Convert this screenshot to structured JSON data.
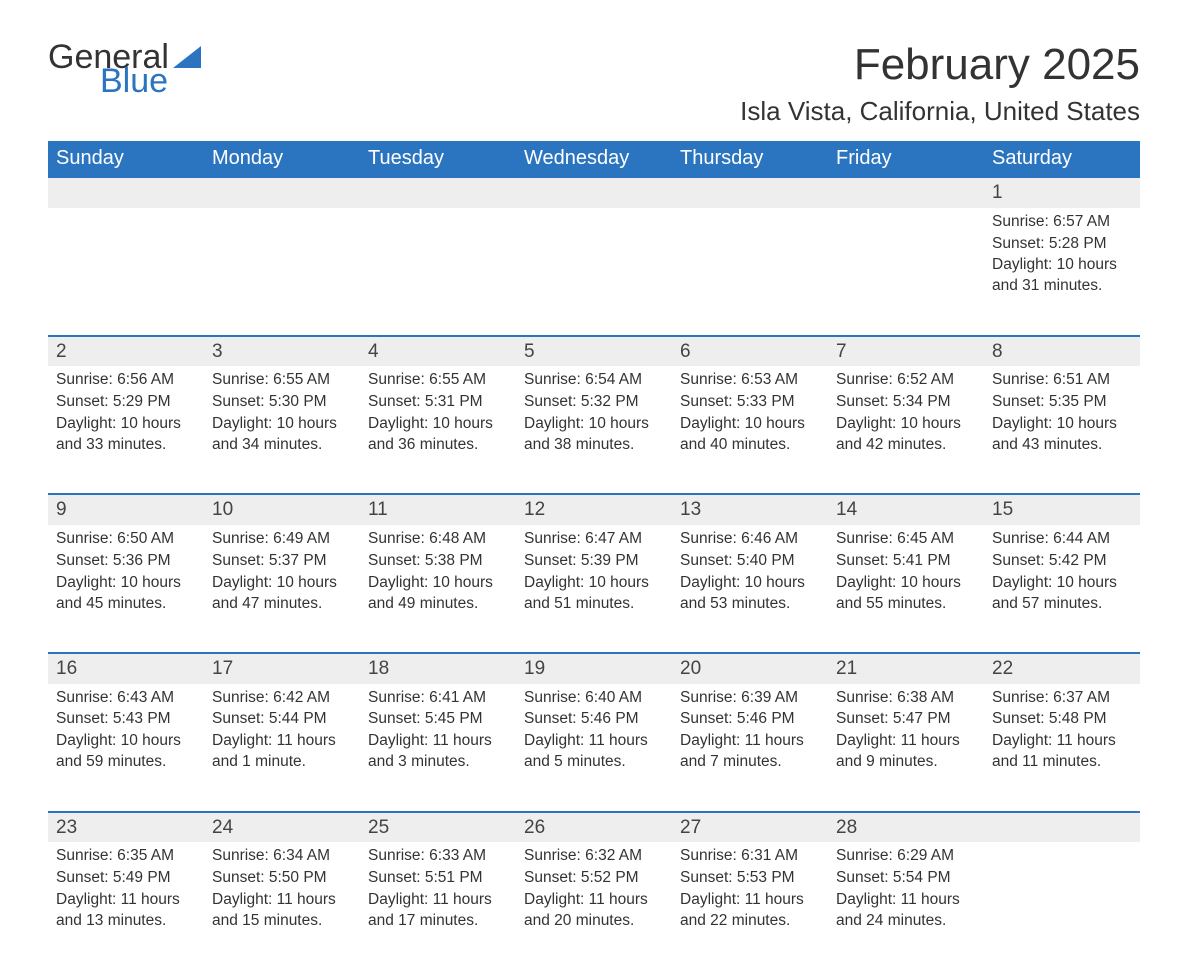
{
  "brand": {
    "part1": "General",
    "part2": "Blue",
    "logo_color": "#2b74c0"
  },
  "title": "February 2025",
  "location": "Isla Vista, California, United States",
  "colors": {
    "header_bg": "#2b74c0",
    "header_text": "#ffffff",
    "daynum_bg": "#eeeeee",
    "row_border": "#2b74c0",
    "body_text": "#333333",
    "page_bg": "#ffffff"
  },
  "typography": {
    "title_fontsize": 44,
    "location_fontsize": 26,
    "dayheader_fontsize": 20,
    "daynum_fontsize": 19,
    "cell_fontsize": 15.5,
    "font_family": "Arial"
  },
  "day_headers": [
    "Sunday",
    "Monday",
    "Tuesday",
    "Wednesday",
    "Thursday",
    "Friday",
    "Saturday"
  ],
  "weeks": [
    [
      null,
      null,
      null,
      null,
      null,
      null,
      {
        "n": "1",
        "sunrise": "Sunrise: 6:57 AM",
        "sunset": "Sunset: 5:28 PM",
        "daylight": "Daylight: 10 hours and 31 minutes."
      }
    ],
    [
      {
        "n": "2",
        "sunrise": "Sunrise: 6:56 AM",
        "sunset": "Sunset: 5:29 PM",
        "daylight": "Daylight: 10 hours and 33 minutes."
      },
      {
        "n": "3",
        "sunrise": "Sunrise: 6:55 AM",
        "sunset": "Sunset: 5:30 PM",
        "daylight": "Daylight: 10 hours and 34 minutes."
      },
      {
        "n": "4",
        "sunrise": "Sunrise: 6:55 AM",
        "sunset": "Sunset: 5:31 PM",
        "daylight": "Daylight: 10 hours and 36 minutes."
      },
      {
        "n": "5",
        "sunrise": "Sunrise: 6:54 AM",
        "sunset": "Sunset: 5:32 PM",
        "daylight": "Daylight: 10 hours and 38 minutes."
      },
      {
        "n": "6",
        "sunrise": "Sunrise: 6:53 AM",
        "sunset": "Sunset: 5:33 PM",
        "daylight": "Daylight: 10 hours and 40 minutes."
      },
      {
        "n": "7",
        "sunrise": "Sunrise: 6:52 AM",
        "sunset": "Sunset: 5:34 PM",
        "daylight": "Daylight: 10 hours and 42 minutes."
      },
      {
        "n": "8",
        "sunrise": "Sunrise: 6:51 AM",
        "sunset": "Sunset: 5:35 PM",
        "daylight": "Daylight: 10 hours and 43 minutes."
      }
    ],
    [
      {
        "n": "9",
        "sunrise": "Sunrise: 6:50 AM",
        "sunset": "Sunset: 5:36 PM",
        "daylight": "Daylight: 10 hours and 45 minutes."
      },
      {
        "n": "10",
        "sunrise": "Sunrise: 6:49 AM",
        "sunset": "Sunset: 5:37 PM",
        "daylight": "Daylight: 10 hours and 47 minutes."
      },
      {
        "n": "11",
        "sunrise": "Sunrise: 6:48 AM",
        "sunset": "Sunset: 5:38 PM",
        "daylight": "Daylight: 10 hours and 49 minutes."
      },
      {
        "n": "12",
        "sunrise": "Sunrise: 6:47 AM",
        "sunset": "Sunset: 5:39 PM",
        "daylight": "Daylight: 10 hours and 51 minutes."
      },
      {
        "n": "13",
        "sunrise": "Sunrise: 6:46 AM",
        "sunset": "Sunset: 5:40 PM",
        "daylight": "Daylight: 10 hours and 53 minutes."
      },
      {
        "n": "14",
        "sunrise": "Sunrise: 6:45 AM",
        "sunset": "Sunset: 5:41 PM",
        "daylight": "Daylight: 10 hours and 55 minutes."
      },
      {
        "n": "15",
        "sunrise": "Sunrise: 6:44 AM",
        "sunset": "Sunset: 5:42 PM",
        "daylight": "Daylight: 10 hours and 57 minutes."
      }
    ],
    [
      {
        "n": "16",
        "sunrise": "Sunrise: 6:43 AM",
        "sunset": "Sunset: 5:43 PM",
        "daylight": "Daylight: 10 hours and 59 minutes."
      },
      {
        "n": "17",
        "sunrise": "Sunrise: 6:42 AM",
        "sunset": "Sunset: 5:44 PM",
        "daylight": "Daylight: 11 hours and 1 minute."
      },
      {
        "n": "18",
        "sunrise": "Sunrise: 6:41 AM",
        "sunset": "Sunset: 5:45 PM",
        "daylight": "Daylight: 11 hours and 3 minutes."
      },
      {
        "n": "19",
        "sunrise": "Sunrise: 6:40 AM",
        "sunset": "Sunset: 5:46 PM",
        "daylight": "Daylight: 11 hours and 5 minutes."
      },
      {
        "n": "20",
        "sunrise": "Sunrise: 6:39 AM",
        "sunset": "Sunset: 5:46 PM",
        "daylight": "Daylight: 11 hours and 7 minutes."
      },
      {
        "n": "21",
        "sunrise": "Sunrise: 6:38 AM",
        "sunset": "Sunset: 5:47 PM",
        "daylight": "Daylight: 11 hours and 9 minutes."
      },
      {
        "n": "22",
        "sunrise": "Sunrise: 6:37 AM",
        "sunset": "Sunset: 5:48 PM",
        "daylight": "Daylight: 11 hours and 11 minutes."
      }
    ],
    [
      {
        "n": "23",
        "sunrise": "Sunrise: 6:35 AM",
        "sunset": "Sunset: 5:49 PM",
        "daylight": "Daylight: 11 hours and 13 minutes."
      },
      {
        "n": "24",
        "sunrise": "Sunrise: 6:34 AM",
        "sunset": "Sunset: 5:50 PM",
        "daylight": "Daylight: 11 hours and 15 minutes."
      },
      {
        "n": "25",
        "sunrise": "Sunrise: 6:33 AM",
        "sunset": "Sunset: 5:51 PM",
        "daylight": "Daylight: 11 hours and 17 minutes."
      },
      {
        "n": "26",
        "sunrise": "Sunrise: 6:32 AM",
        "sunset": "Sunset: 5:52 PM",
        "daylight": "Daylight: 11 hours and 20 minutes."
      },
      {
        "n": "27",
        "sunrise": "Sunrise: 6:31 AM",
        "sunset": "Sunset: 5:53 PM",
        "daylight": "Daylight: 11 hours and 22 minutes."
      },
      {
        "n": "28",
        "sunrise": "Sunrise: 6:29 AM",
        "sunset": "Sunset: 5:54 PM",
        "daylight": "Daylight: 11 hours and 24 minutes."
      },
      null
    ]
  ]
}
